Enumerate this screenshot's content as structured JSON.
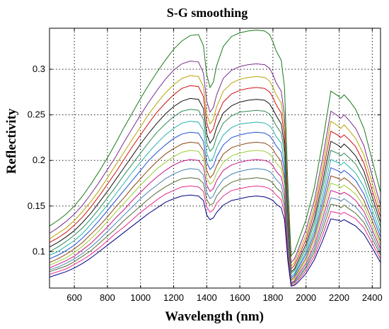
{
  "chart_data": {
    "type": "line",
    "title": "S-G smoothing",
    "xlabel": "Wavelength (nm)",
    "ylabel": "Reflectivity",
    "xlim": [
      450,
      2450
    ],
    "ylim": [
      0.06,
      0.345
    ],
    "x_ticks": [
      600,
      800,
      1000,
      1200,
      1400,
      1600,
      1800,
      2000,
      2200,
      2400
    ],
    "y_ticks": [
      0.1,
      0.15,
      0.2,
      0.25,
      0.3
    ],
    "y_tick_labels": [
      "0.1",
      "0.15",
      "0.2",
      "0.25",
      "0.3"
    ],
    "grid": true,
    "legend": "none",
    "x": [
      450,
      500,
      550,
      600,
      650,
      700,
      750,
      800,
      850,
      900,
      950,
      1000,
      1050,
      1100,
      1150,
      1200,
      1250,
      1300,
      1350,
      1380,
      1400,
      1420,
      1440,
      1460,
      1500,
      1550,
      1600,
      1650,
      1700,
      1750,
      1780,
      1800,
      1820,
      1850,
      1870,
      1890,
      1910,
      1930,
      1950,
      2000,
      2050,
      2100,
      2150,
      2200,
      2210,
      2230,
      2260,
      2300,
      2350,
      2400,
      2450
    ],
    "series": [
      {
        "color": "#1b7a1b",
        "values": [
          0.128,
          0.134,
          0.141,
          0.15,
          0.161,
          0.174,
          0.188,
          0.203,
          0.219,
          0.236,
          0.252,
          0.268,
          0.283,
          0.297,
          0.31,
          0.322,
          0.331,
          0.337,
          0.338,
          0.326,
          0.294,
          0.28,
          0.286,
          0.304,
          0.325,
          0.336,
          0.34,
          0.342,
          0.343,
          0.342,
          0.338,
          0.33,
          0.32,
          0.31,
          0.28,
          0.175,
          0.095,
          0.1,
          0.11,
          0.135,
          0.17,
          0.22,
          0.276,
          0.27,
          0.268,
          0.272,
          0.266,
          0.256,
          0.235,
          0.2,
          0.165
        ]
      },
      {
        "color": "#7b2d8e",
        "values": [
          0.12,
          0.126,
          0.133,
          0.141,
          0.151,
          0.163,
          0.176,
          0.19,
          0.204,
          0.22,
          0.235,
          0.25,
          0.264,
          0.277,
          0.289,
          0.299,
          0.306,
          0.309,
          0.308,
          0.296,
          0.265,
          0.253,
          0.258,
          0.272,
          0.29,
          0.299,
          0.303,
          0.305,
          0.306,
          0.305,
          0.301,
          0.294,
          0.285,
          0.276,
          0.249,
          0.155,
          0.088,
          0.092,
          0.101,
          0.124,
          0.156,
          0.202,
          0.254,
          0.248,
          0.246,
          0.25,
          0.244,
          0.235,
          0.216,
          0.183,
          0.151
        ]
      },
      {
        "color": "#b5a400",
        "values": [
          0.114,
          0.12,
          0.126,
          0.134,
          0.144,
          0.155,
          0.167,
          0.181,
          0.195,
          0.209,
          0.223,
          0.237,
          0.251,
          0.263,
          0.274,
          0.283,
          0.29,
          0.293,
          0.292,
          0.281,
          0.251,
          0.24,
          0.245,
          0.259,
          0.276,
          0.285,
          0.289,
          0.291,
          0.292,
          0.291,
          0.287,
          0.28,
          0.272,
          0.263,
          0.237,
          0.147,
          0.084,
          0.088,
          0.097,
          0.118,
          0.149,
          0.193,
          0.243,
          0.237,
          0.235,
          0.239,
          0.233,
          0.224,
          0.206,
          0.175,
          0.144
        ]
      },
      {
        "color": "#d01010",
        "values": [
          0.11,
          0.115,
          0.121,
          0.129,
          0.138,
          0.149,
          0.161,
          0.174,
          0.187,
          0.201,
          0.215,
          0.228,
          0.241,
          0.253,
          0.263,
          0.272,
          0.279,
          0.282,
          0.281,
          0.27,
          0.241,
          0.23,
          0.235,
          0.248,
          0.264,
          0.273,
          0.277,
          0.279,
          0.28,
          0.279,
          0.275,
          0.269,
          0.261,
          0.252,
          0.227,
          0.141,
          0.081,
          0.085,
          0.093,
          0.113,
          0.143,
          0.185,
          0.232,
          0.227,
          0.225,
          0.228,
          0.223,
          0.215,
          0.197,
          0.167,
          0.138
        ]
      },
      {
        "color": "#111111",
        "values": [
          0.105,
          0.11,
          0.116,
          0.123,
          0.132,
          0.142,
          0.154,
          0.166,
          0.179,
          0.192,
          0.205,
          0.218,
          0.23,
          0.241,
          0.251,
          0.259,
          0.265,
          0.268,
          0.267,
          0.257,
          0.229,
          0.219,
          0.224,
          0.236,
          0.252,
          0.26,
          0.264,
          0.266,
          0.267,
          0.266,
          0.262,
          0.256,
          0.249,
          0.24,
          0.217,
          0.135,
          0.078,
          0.081,
          0.089,
          0.108,
          0.136,
          0.176,
          0.221,
          0.216,
          0.214,
          0.218,
          0.213,
          0.205,
          0.188,
          0.16,
          0.132
        ]
      },
      {
        "color": "#2e8b57",
        "values": [
          0.1,
          0.105,
          0.111,
          0.118,
          0.126,
          0.136,
          0.147,
          0.159,
          0.171,
          0.184,
          0.196,
          0.208,
          0.22,
          0.231,
          0.24,
          0.248,
          0.254,
          0.256,
          0.255,
          0.245,
          0.219,
          0.21,
          0.214,
          0.226,
          0.241,
          0.249,
          0.253,
          0.254,
          0.255,
          0.254,
          0.251,
          0.245,
          0.238,
          0.23,
          0.208,
          0.13,
          0.076,
          0.079,
          0.086,
          0.104,
          0.131,
          0.169,
          0.211,
          0.207,
          0.205,
          0.208,
          0.203,
          0.196,
          0.18,
          0.153,
          0.127
        ]
      },
      {
        "color": "#20b2aa",
        "values": [
          0.096,
          0.1,
          0.106,
          0.112,
          0.12,
          0.13,
          0.14,
          0.151,
          0.163,
          0.175,
          0.187,
          0.198,
          0.209,
          0.219,
          0.228,
          0.235,
          0.241,
          0.243,
          0.242,
          0.233,
          0.208,
          0.199,
          0.203,
          0.214,
          0.228,
          0.236,
          0.24,
          0.241,
          0.242,
          0.241,
          0.238,
          0.233,
          0.226,
          0.219,
          0.198,
          0.124,
          0.073,
          0.076,
          0.083,
          0.1,
          0.125,
          0.161,
          0.201,
          0.197,
          0.195,
          0.198,
          0.193,
          0.186,
          0.171,
          0.146,
          0.121
        ]
      },
      {
        "color": "#1f4fd6",
        "values": [
          0.092,
          0.096,
          0.101,
          0.107,
          0.115,
          0.124,
          0.134,
          0.145,
          0.156,
          0.167,
          0.178,
          0.189,
          0.2,
          0.209,
          0.217,
          0.224,
          0.229,
          0.231,
          0.23,
          0.221,
          0.198,
          0.19,
          0.194,
          0.204,
          0.217,
          0.225,
          0.228,
          0.23,
          0.231,
          0.23,
          0.227,
          0.222,
          0.216,
          0.209,
          0.189,
          0.119,
          0.071,
          0.074,
          0.081,
          0.097,
          0.12,
          0.154,
          0.192,
          0.188,
          0.186,
          0.189,
          0.185,
          0.178,
          0.163,
          0.14,
          0.116
        ]
      },
      {
        "color": "#8b4513",
        "values": [
          0.088,
          0.092,
          0.097,
          0.103,
          0.11,
          0.119,
          0.128,
          0.138,
          0.149,
          0.159,
          0.17,
          0.18,
          0.19,
          0.199,
          0.207,
          0.213,
          0.218,
          0.22,
          0.219,
          0.211,
          0.189,
          0.181,
          0.185,
          0.194,
          0.207,
          0.214,
          0.217,
          0.219,
          0.22,
          0.219,
          0.216,
          0.212,
          0.206,
          0.199,
          0.18,
          0.114,
          0.069,
          0.072,
          0.078,
          0.093,
          0.116,
          0.148,
          0.183,
          0.18,
          0.178,
          0.181,
          0.177,
          0.17,
          0.156,
          0.134,
          0.111
        ]
      },
      {
        "color": "#9acd32",
        "values": [
          0.085,
          0.089,
          0.093,
          0.099,
          0.106,
          0.114,
          0.123,
          0.133,
          0.143,
          0.153,
          0.163,
          0.173,
          0.182,
          0.191,
          0.198,
          0.204,
          0.209,
          0.211,
          0.21,
          0.202,
          0.181,
          0.174,
          0.177,
          0.186,
          0.198,
          0.205,
          0.208,
          0.21,
          0.211,
          0.21,
          0.207,
          0.203,
          0.197,
          0.191,
          0.173,
          0.11,
          0.068,
          0.07,
          0.076,
          0.09,
          0.112,
          0.142,
          0.175,
          0.172,
          0.17,
          0.173,
          0.169,
          0.163,
          0.15,
          0.129,
          0.107
        ]
      },
      {
        "color": "#c71585",
        "values": [
          0.082,
          0.086,
          0.09,
          0.095,
          0.102,
          0.109,
          0.118,
          0.127,
          0.137,
          0.146,
          0.156,
          0.165,
          0.174,
          0.182,
          0.189,
          0.195,
          0.199,
          0.201,
          0.2,
          0.193,
          0.173,
          0.166,
          0.169,
          0.178,
          0.189,
          0.195,
          0.198,
          0.2,
          0.201,
          0.2,
          0.198,
          0.194,
          0.188,
          0.182,
          0.165,
          0.106,
          0.066,
          0.068,
          0.074,
          0.087,
          0.107,
          0.136,
          0.167,
          0.164,
          0.163,
          0.165,
          0.162,
          0.156,
          0.144,
          0.124,
          0.103
        ]
      },
      {
        "color": "#4682b4",
        "values": [
          0.08,
          0.083,
          0.087,
          0.092,
          0.098,
          0.105,
          0.113,
          0.122,
          0.131,
          0.14,
          0.149,
          0.158,
          0.166,
          0.173,
          0.18,
          0.185,
          0.189,
          0.191,
          0.19,
          0.184,
          0.165,
          0.158,
          0.161,
          0.169,
          0.179,
          0.185,
          0.188,
          0.19,
          0.191,
          0.19,
          0.188,
          0.184,
          0.179,
          0.173,
          0.157,
          0.102,
          0.065,
          0.067,
          0.072,
          0.084,
          0.103,
          0.13,
          0.159,
          0.157,
          0.155,
          0.158,
          0.154,
          0.149,
          0.138,
          0.119,
          0.099
        ]
      },
      {
        "color": "#556b2f",
        "values": [
          0.078,
          0.081,
          0.084,
          0.089,
          0.095,
          0.101,
          0.109,
          0.117,
          0.125,
          0.134,
          0.142,
          0.15,
          0.158,
          0.165,
          0.171,
          0.176,
          0.18,
          0.181,
          0.18,
          0.175,
          0.157,
          0.151,
          0.153,
          0.161,
          0.17,
          0.176,
          0.179,
          0.18,
          0.181,
          0.18,
          0.178,
          0.175,
          0.17,
          0.165,
          0.15,
          0.098,
          0.064,
          0.066,
          0.07,
          0.082,
          0.099,
          0.124,
          0.152,
          0.15,
          0.148,
          0.151,
          0.147,
          0.142,
          0.132,
          0.114,
          0.096
        ]
      },
      {
        "color": "#e7298a",
        "values": [
          0.075,
          0.078,
          0.081,
          0.086,
          0.091,
          0.097,
          0.104,
          0.112,
          0.12,
          0.127,
          0.135,
          0.143,
          0.15,
          0.157,
          0.163,
          0.167,
          0.171,
          0.172,
          0.171,
          0.166,
          0.149,
          0.143,
          0.146,
          0.153,
          0.161,
          0.167,
          0.169,
          0.171,
          0.172,
          0.171,
          0.169,
          0.166,
          0.162,
          0.157,
          0.143,
          0.094,
          0.063,
          0.064,
          0.068,
          0.079,
          0.095,
          0.118,
          0.144,
          0.142,
          0.141,
          0.143,
          0.14,
          0.136,
          0.126,
          0.109,
          0.092
        ]
      },
      {
        "color": "#000080",
        "values": [
          0.072,
          0.075,
          0.078,
          0.082,
          0.087,
          0.093,
          0.1,
          0.107,
          0.114,
          0.121,
          0.128,
          0.135,
          0.142,
          0.148,
          0.154,
          0.158,
          0.161,
          0.162,
          0.161,
          0.156,
          0.14,
          0.135,
          0.137,
          0.143,
          0.151,
          0.156,
          0.158,
          0.16,
          0.161,
          0.16,
          0.158,
          0.156,
          0.152,
          0.148,
          0.135,
          0.09,
          0.062,
          0.063,
          0.066,
          0.076,
          0.091,
          0.112,
          0.136,
          0.134,
          0.133,
          0.135,
          0.132,
          0.128,
          0.119,
          0.104,
          0.088
        ]
      }
    ]
  }
}
